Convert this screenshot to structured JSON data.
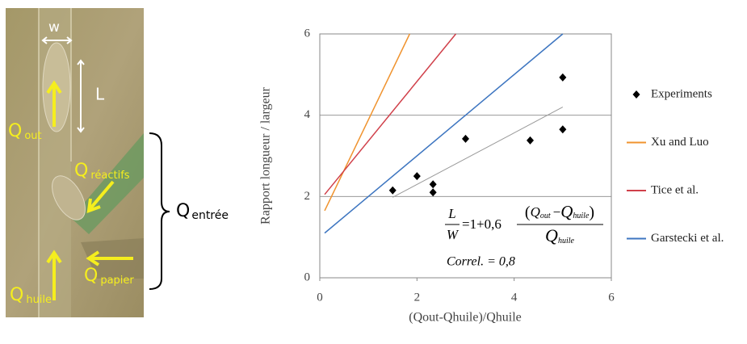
{
  "image": {
    "labels": {
      "w": "w",
      "L": "L",
      "q_out": {
        "main": "Q",
        "sub": "out"
      },
      "q_reactifs": {
        "main": "Q",
        "sub": "réactifs"
      },
      "q_papier": {
        "main": "Q",
        "sub": "papier"
      },
      "q_huile": {
        "main": "Q",
        "sub": "huile"
      },
      "q_entree": {
        "main": "Q",
        "sub": "entrée"
      }
    }
  },
  "chart_data": {
    "type": "scatter",
    "xlabel": "(Qout-Qhuile)/Qhuile",
    "ylabel": "Rapport longueur / largeur",
    "xlim": [
      0,
      6
    ],
    "ylim": [
      0,
      6
    ],
    "xticks": [
      0,
      2,
      4,
      6
    ],
    "yticks": [
      0,
      2,
      4,
      6
    ],
    "legend": "right",
    "series": [
      {
        "name": "Experiments",
        "color": "#000000",
        "style": "markers",
        "x": [
          1.5,
          2,
          2.33,
          2.33,
          3,
          4.33,
          5,
          5
        ],
        "values": [
          2.15,
          2.5,
          2.3,
          2.1,
          3.42,
          3.38,
          4.93,
          3.65
        ]
      },
      {
        "name": "Xu and Luo",
        "color": "#f0932e",
        "style": "line",
        "x": [
          0.1,
          1.85
        ],
        "values": [
          1.65,
          6
        ]
      },
      {
        "name": "Tice et al.",
        "color": "#d0404a",
        "style": "line",
        "x": [
          0.1,
          2.8
        ],
        "values": [
          2.05,
          6
        ]
      },
      {
        "name": "Garstecki et al.",
        "color": "#3d75c0",
        "style": "line",
        "x": [
          0.1,
          5
        ],
        "values": [
          1.1,
          6
        ]
      }
    ],
    "fit": {
      "color": "#999999",
      "x": [
        1.5,
        5
      ],
      "values": [
        1.98,
        4.2
      ]
    },
    "equation": {
      "lhs_num": "L",
      "lhs_den": "W",
      "rhs": "=1+0,6",
      "num": [
        "(",
        "Q",
        "out",
        "−",
        "Q",
        "huile",
        ")"
      ],
      "den": [
        "Q",
        "huile"
      ]
    },
    "correlation": "Correl. = 0,8"
  }
}
